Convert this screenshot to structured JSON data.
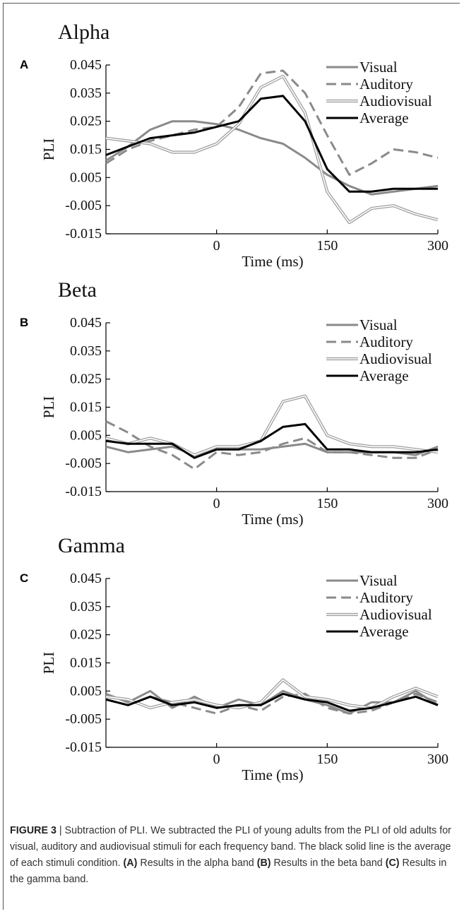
{
  "caption": {
    "label": "FIGURE 3",
    "separator": " | ",
    "text": "Subtraction of PLI. We subtracted the PLI of young adults from the PLI of old adults for visual, auditory and audiovisual stimuli for each frequency band. The black solid line is the average of each stimuli condition.",
    "a_label": "(A)",
    "a_text": " Results in the alpha band ",
    "b_label": "(B)",
    "b_text": " Results in the beta band ",
    "c_label": "(C)",
    "c_text": " Results in the gamma band."
  },
  "colors": {
    "visual": "#8a8a8a",
    "auditory": "#8a8a8a",
    "audiovisual": "#a0a0a0",
    "average": "#000000"
  },
  "chart_data": [
    {
      "type": "line",
      "title": "Alpha",
      "panel_label": "A",
      "xlabel": "Time (ms)",
      "ylabel": "PLI",
      "xlim": [
        -150,
        300
      ],
      "ylim": [
        -0.015,
        0.045
      ],
      "x_ticks": [
        "0",
        "150",
        "300"
      ],
      "y_ticks": [
        "0.045",
        "0.035",
        "0.025",
        "0.015",
        "0.005",
        "-0.005",
        "-0.015"
      ],
      "legend_position": "top-right",
      "series": [
        {
          "name": "Visual",
          "style": "solid-gray",
          "x": [
            -150,
            -120,
            -90,
            -60,
            -30,
            0,
            30,
            60,
            90,
            120,
            150,
            180,
            210,
            240,
            270,
            300
          ],
          "y": [
            0.011,
            0.016,
            0.022,
            0.025,
            0.025,
            0.024,
            0.022,
            0.019,
            0.017,
            0.012,
            0.006,
            0.002,
            -0.001,
            0.0,
            0.001,
            0.002
          ]
        },
        {
          "name": "Auditory",
          "style": "dashed-gray",
          "x": [
            -150,
            -120,
            -90,
            -60,
            -30,
            0,
            30,
            60,
            90,
            120,
            150,
            180,
            210,
            240,
            270,
            300
          ],
          "y": [
            0.01,
            0.015,
            0.018,
            0.02,
            0.022,
            0.023,
            0.03,
            0.042,
            0.043,
            0.035,
            0.02,
            0.006,
            0.01,
            0.015,
            0.014,
            0.012
          ]
        },
        {
          "name": "Audiovisual",
          "style": "double-gray",
          "x": [
            -150,
            -120,
            -90,
            -60,
            -30,
            0,
            30,
            60,
            90,
            120,
            150,
            180,
            210,
            240,
            270,
            300
          ],
          "y": [
            0.019,
            0.018,
            0.017,
            0.014,
            0.014,
            0.017,
            0.024,
            0.037,
            0.041,
            0.028,
            0.0,
            -0.011,
            -0.006,
            -0.005,
            -0.008,
            -0.01
          ]
        },
        {
          "name": "Average",
          "style": "solid-black",
          "x": [
            -150,
            -120,
            -90,
            -60,
            -30,
            0,
            30,
            60,
            90,
            120,
            150,
            180,
            210,
            240,
            270,
            300
          ],
          "y": [
            0.013,
            0.016,
            0.019,
            0.02,
            0.021,
            0.023,
            0.025,
            0.033,
            0.034,
            0.025,
            0.008,
            0.0,
            0.0,
            0.001,
            0.001,
            0.001
          ]
        }
      ]
    },
    {
      "type": "line",
      "title": "Beta",
      "panel_label": "B",
      "xlabel": "Time (ms)",
      "ylabel": "PLI",
      "xlim": [
        -150,
        300
      ],
      "ylim": [
        -0.015,
        0.045
      ],
      "x_ticks": [
        "0",
        "150",
        "300"
      ],
      "y_ticks": [
        "0.045",
        "0.035",
        "0.025",
        "0.015",
        "0.005",
        "-0.005",
        "-0.015"
      ],
      "legend_position": "top-right",
      "series": [
        {
          "name": "Visual",
          "style": "solid-gray",
          "x": [
            -150,
            -120,
            -90,
            -60,
            -30,
            0,
            30,
            60,
            90,
            120,
            150,
            180,
            210,
            240,
            270,
            300
          ],
          "y": [
            0.001,
            -0.001,
            0.0,
            0.001,
            -0.002,
            0.0,
            0.0,
            0.0,
            0.001,
            0.002,
            -0.001,
            -0.001,
            -0.001,
            -0.001,
            -0.002,
            0.001
          ]
        },
        {
          "name": "Auditory",
          "style": "dashed-gray",
          "x": [
            -150,
            -120,
            -90,
            -60,
            -30,
            0,
            30,
            60,
            90,
            120,
            150,
            180,
            210,
            240,
            270,
            300
          ],
          "y": [
            0.01,
            0.006,
            0.001,
            -0.002,
            -0.007,
            -0.001,
            -0.002,
            -0.001,
            0.002,
            0.004,
            -0.001,
            -0.001,
            -0.002,
            -0.003,
            -0.003,
            0.0
          ]
        },
        {
          "name": "Audiovisual",
          "style": "double-gray",
          "x": [
            -150,
            -120,
            -90,
            -60,
            -30,
            0,
            30,
            60,
            90,
            120,
            150,
            180,
            210,
            240,
            270,
            300
          ],
          "y": [
            0.004,
            0.002,
            0.004,
            0.002,
            -0.002,
            0.001,
            0.001,
            0.003,
            0.017,
            0.019,
            0.005,
            0.002,
            0.001,
            0.001,
            0.0,
            -0.001
          ]
        },
        {
          "name": "Average",
          "style": "solid-black",
          "x": [
            -150,
            -120,
            -90,
            -60,
            -30,
            0,
            30,
            60,
            90,
            120,
            150,
            180,
            210,
            240,
            270,
            300
          ],
          "y": [
            0.003,
            0.002,
            0.002,
            0.002,
            -0.003,
            0.0,
            0.0,
            0.003,
            0.008,
            0.009,
            0.0,
            0.0,
            -0.001,
            -0.001,
            -0.001,
            0.0
          ]
        }
      ]
    },
    {
      "type": "line",
      "title": "Gamma",
      "panel_label": "C",
      "xlabel": "Time (ms)",
      "ylabel": "PLI",
      "xlim": [
        -150,
        300
      ],
      "ylim": [
        -0.015,
        0.045
      ],
      "x_ticks": [
        "0",
        "150",
        "300"
      ],
      "y_ticks": [
        "0.045",
        "0.035",
        "0.025",
        "0.015",
        "0.005",
        "-0.005",
        "-0.015"
      ],
      "legend_position": "top-right",
      "series": [
        {
          "name": "Visual",
          "style": "solid-gray",
          "x": [
            -150,
            -120,
            -90,
            -60,
            -30,
            0,
            30,
            60,
            90,
            120,
            150,
            180,
            210,
            240,
            270,
            300
          ],
          "y": [
            0.004,
            0.001,
            0.005,
            -0.001,
            0.003,
            -0.001,
            0.002,
            0.0,
            0.005,
            0.002,
            0.0,
            -0.003,
            0.001,
            0.001,
            0.005,
            0.0
          ]
        },
        {
          "name": "Auditory",
          "style": "dashed-gray",
          "x": [
            -150,
            -120,
            -90,
            -60,
            -30,
            0,
            30,
            60,
            90,
            120,
            150,
            180,
            210,
            240,
            270,
            300
          ],
          "y": [
            0.002,
            0.0,
            0.003,
            0.001,
            -0.001,
            -0.003,
            0.0,
            -0.002,
            0.003,
            0.004,
            -0.001,
            -0.003,
            -0.002,
            0.001,
            0.004,
            0.001
          ]
        },
        {
          "name": "Audiovisual",
          "style": "double-gray",
          "x": [
            -150,
            -120,
            -90,
            -60,
            -30,
            0,
            30,
            60,
            90,
            120,
            150,
            180,
            210,
            240,
            270,
            300
          ],
          "y": [
            0.003,
            0.002,
            -0.001,
            0.001,
            0.002,
            0.0,
            -0.001,
            0.001,
            0.009,
            0.003,
            0.002,
            0.0,
            -0.001,
            0.003,
            0.006,
            0.003
          ]
        },
        {
          "name": "Average",
          "style": "solid-black",
          "x": [
            -150,
            -120,
            -90,
            -60,
            -30,
            0,
            30,
            60,
            90,
            120,
            150,
            180,
            210,
            240,
            270,
            300
          ],
          "y": [
            0.002,
            0.0,
            0.003,
            0.0,
            0.001,
            -0.001,
            0.0,
            0.0,
            0.004,
            0.002,
            0.001,
            -0.002,
            -0.001,
            0.001,
            0.003,
            0.0
          ]
        }
      ]
    }
  ]
}
